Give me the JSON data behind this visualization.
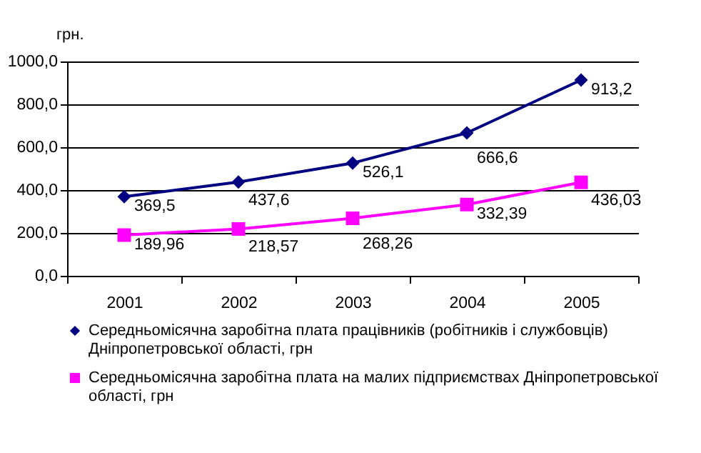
{
  "chart_data": {
    "type": "line",
    "ylabel": "грн.",
    "categories": [
      "2001",
      "2002",
      "2003",
      "2004",
      "2005"
    ],
    "series": [
      {
        "name": "Середньомісячна заробітна плата працівників (робітників і службовців) Дніпропетровської області, грн",
        "color": "#000080",
        "marker": "diamond",
        "values": [
          369.5,
          437.6,
          526.1,
          666.6,
          913.2
        ],
        "value_labels": [
          "369,5",
          "437,6",
          "526,1",
          "666,6",
          "913,2"
        ]
      },
      {
        "name": "Середньомісячна заробітна плата на малих підприємствах Дніпропетровської області, грн",
        "color": "#ff00ff",
        "marker": "square",
        "values": [
          189.96,
          218.57,
          268.26,
          332.39,
          436.03
        ],
        "value_labels": [
          "189,96",
          "218,57",
          "268,26",
          "332,39",
          "436,03"
        ]
      }
    ],
    "ylim": [
      0,
      1000
    ],
    "yticks": [
      {
        "value": 0,
        "label": "0,0"
      },
      {
        "value": 200,
        "label": "200,0"
      },
      {
        "value": 400,
        "label": "400,0"
      },
      {
        "value": 600,
        "label": "600,0"
      },
      {
        "value": 800,
        "label": "800,0"
      },
      {
        "value": 1000,
        "label": "1000,0"
      }
    ],
    "grid": "y",
    "legend": "bottom"
  }
}
